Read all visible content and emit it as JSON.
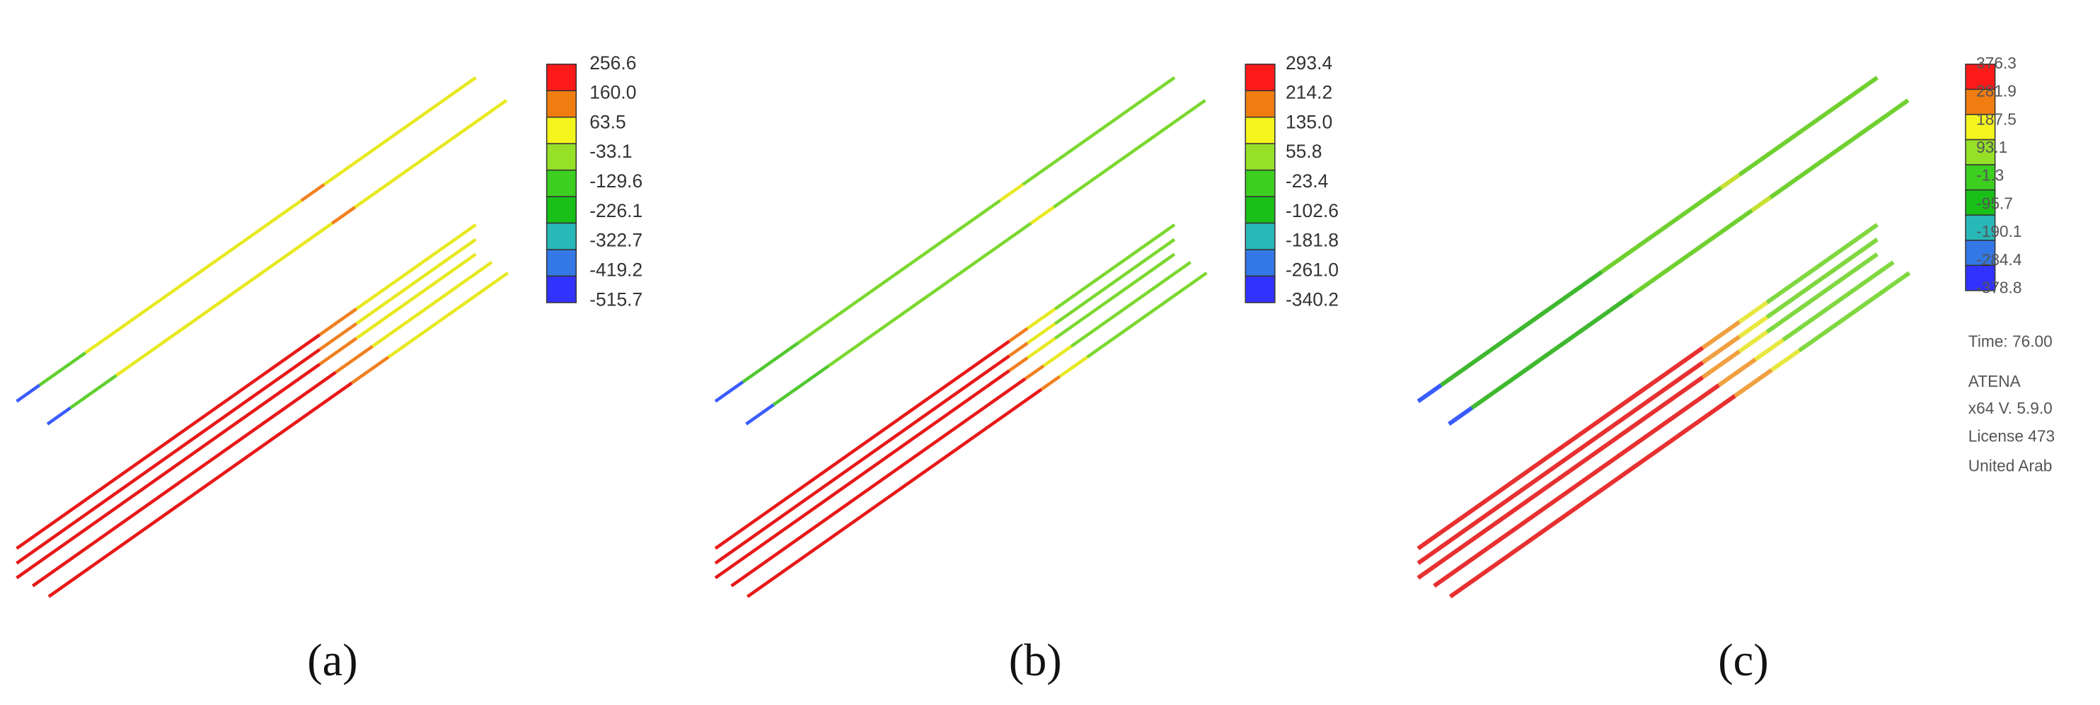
{
  "panels": [
    {
      "label": "(a)",
      "legend": [
        "256.6",
        "160.0",
        "63.5",
        "-33.1",
        "-129.6",
        "-226.1",
        "-322.7",
        "-419.2",
        "-515.7"
      ]
    },
    {
      "label": "(b)",
      "legend": [
        "293.4",
        "214.2",
        "135.0",
        "55.8",
        "-23.4",
        "-102.6",
        "-181.8",
        "-261.0",
        "-340.2"
      ]
    },
    {
      "label": "(c)",
      "legend": [
        "376.3",
        "281.9",
        "187.5",
        "93.1",
        "-1.3",
        "-95.7",
        "-190.1",
        "-284.4",
        "-378.8"
      ]
    }
  ],
  "info": [
    "Time: 76.00",
    "ATENA",
    "x64 V. 5.9.0",
    "License 473",
    "United Arab"
  ]
}
